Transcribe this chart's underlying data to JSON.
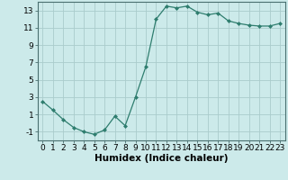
{
  "x": [
    0,
    1,
    2,
    3,
    4,
    5,
    6,
    7,
    8,
    9,
    10,
    11,
    12,
    13,
    14,
    15,
    16,
    17,
    18,
    19,
    20,
    21,
    22,
    23
  ],
  "y": [
    2.5,
    1.5,
    0.4,
    -0.5,
    -1.0,
    -1.3,
    -0.8,
    0.8,
    -0.3,
    3.0,
    6.5,
    12.0,
    13.5,
    13.3,
    13.5,
    12.8,
    12.5,
    12.7,
    11.8,
    11.5,
    11.3,
    11.2,
    11.2,
    11.5
  ],
  "line_color": "#2e7d6e",
  "marker": "D",
  "marker_size": 2,
  "bg_color": "#cceaea",
  "grid_color": "#aacccc",
  "xlabel": "Humidex (Indice chaleur)",
  "xlim": [
    -0.5,
    23.5
  ],
  "ylim": [
    -2.0,
    14.0
  ],
  "yticks": [
    -1,
    1,
    3,
    5,
    7,
    9,
    11,
    13
  ],
  "xticks": [
    0,
    1,
    2,
    3,
    4,
    5,
    6,
    7,
    8,
    9,
    10,
    11,
    12,
    13,
    14,
    15,
    16,
    17,
    18,
    19,
    20,
    21,
    22,
    23
  ],
  "xlabel_fontsize": 7.5,
  "tick_fontsize": 6.5
}
